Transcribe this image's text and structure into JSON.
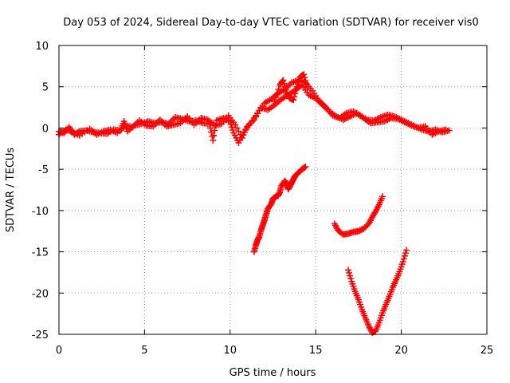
{
  "chart_data": {
    "type": "scatter",
    "title": "Day 053 of 2024, Sidereal Day-to-day VTEC variation (SDTVAR) for receiver vis0",
    "xlabel": "GPS time / hours",
    "ylabel": "SDTVAR / TECUs",
    "xlim": [
      0,
      25
    ],
    "ylim": [
      -25,
      10
    ],
    "xticks": [
      "0",
      "5",
      "10",
      "15",
      "20",
      "25"
    ],
    "yticks": [
      "10",
      "5",
      "0",
      "-5",
      "-10",
      "-15",
      "-20",
      "-25"
    ],
    "grid": true,
    "marker": "+",
    "color": "#ff0000",
    "series": [
      {
        "points": [
          [
            0,
            -0.4
          ],
          [
            0.3,
            -0.6
          ],
          [
            0.6,
            0.1
          ],
          [
            0.9,
            -0.8
          ],
          [
            1.2,
            -0.4
          ],
          [
            1.6,
            -0.3
          ],
          [
            2.0,
            -0.5
          ],
          [
            2.4,
            -0.6
          ],
          [
            2.8,
            -0.7
          ],
          [
            3.2,
            -0.2
          ],
          [
            3.6,
            -0.3
          ],
          [
            3.8,
            0.8
          ],
          [
            4.0,
            -0.4
          ],
          [
            4.4,
            0.3
          ],
          [
            4.8,
            0.5
          ],
          [
            5.2,
            0.8
          ],
          [
            5.6,
            0.6
          ],
          [
            6.0,
            0.7
          ],
          [
            6.4,
            0.5
          ],
          [
            6.8,
            1.3
          ],
          [
            7.2,
            1.1
          ],
          [
            7.6,
            0.8
          ],
          [
            8.0,
            0.9
          ],
          [
            8.4,
            0.6
          ],
          [
            8.8,
            0.5
          ],
          [
            9.0,
            -1.5
          ],
          [
            9.2,
            0.9
          ],
          [
            9.6,
            1.2
          ],
          [
            10.0,
            0.8
          ],
          [
            10.2,
            -0.6
          ],
          [
            10.5,
            -1.8
          ],
          [
            10.8,
            -0.5
          ],
          [
            11.2,
            0.6
          ],
          [
            11.6,
            1.8
          ],
          [
            12.0,
            3.0
          ],
          [
            12.4,
            3.5
          ],
          [
            12.8,
            4.2
          ],
          [
            13.2,
            4.7
          ],
          [
            13.6,
            5.5
          ],
          [
            14.0,
            5.8
          ],
          [
            14.4,
            5.5
          ],
          [
            14.8,
            4.5
          ],
          [
            15.2,
            3.3
          ],
          [
            15.6,
            2.5
          ],
          [
            16.0,
            1.5
          ],
          [
            16.4,
            1.2
          ],
          [
            16.8,
            1.8
          ],
          [
            17.2,
            2.0
          ],
          [
            17.6,
            1.5
          ],
          [
            18.0,
            1.0
          ],
          [
            18.4,
            0.9
          ],
          [
            18.8,
            1.3
          ],
          [
            19.2,
            1.6
          ],
          [
            19.6,
            1.4
          ],
          [
            20.0,
            1.0
          ],
          [
            20.4,
            0.6
          ],
          [
            20.8,
            0.2
          ],
          [
            21.2,
            -0.2
          ],
          [
            21.6,
            -0.4
          ],
          [
            22.0,
            -0.2
          ],
          [
            22.4,
            -0.5
          ],
          [
            22.8,
            -0.3
          ]
        ]
      },
      {
        "points": [
          [
            0,
            -0.8
          ],
          [
            0.4,
            -0.2
          ],
          [
            0.8,
            -0.5
          ],
          [
            1.2,
            -0.9
          ],
          [
            1.8,
            -0.1
          ],
          [
            2.2,
            -0.8
          ],
          [
            2.6,
            -0.4
          ],
          [
            3.0,
            -0.2
          ],
          [
            3.4,
            -0.6
          ],
          [
            3.9,
            0.3
          ],
          [
            4.3,
            0.1
          ],
          [
            4.7,
            0.9
          ],
          [
            5.1,
            0.3
          ],
          [
            5.5,
            0.2
          ],
          [
            5.9,
            1.0
          ],
          [
            6.3,
            0.2
          ],
          [
            6.7,
            0.4
          ],
          [
            7.1,
            0.6
          ],
          [
            7.5,
            1.4
          ],
          [
            7.9,
            0.4
          ],
          [
            8.3,
            1.2
          ],
          [
            8.7,
            1.0
          ],
          [
            9.1,
            0.3
          ],
          [
            9.5,
            0.5
          ],
          [
            9.9,
            1.5
          ],
          [
            10.3,
            0.4
          ],
          [
            10.7,
            -1.2
          ],
          [
            11.0,
            0.2
          ],
          [
            11.4,
            1.0
          ],
          [
            11.8,
            2.5
          ],
          [
            12.2,
            2.2
          ],
          [
            12.6,
            2.8
          ],
          [
            13.0,
            3.5
          ],
          [
            13.4,
            4.0
          ],
          [
            13.8,
            4.6
          ],
          [
            14.2,
            5.2
          ],
          [
            14.6,
            4.0
          ],
          [
            15.0,
            3.6
          ],
          [
            15.4,
            2.8
          ],
          [
            15.8,
            2.0
          ],
          [
            16.2,
            1.4
          ],
          [
            16.6,
            1.0
          ],
          [
            17.0,
            1.4
          ],
          [
            17.4,
            1.8
          ],
          [
            17.8,
            1.2
          ],
          [
            18.2,
            0.6
          ],
          [
            18.6,
            0.7
          ],
          [
            19.0,
            0.8
          ],
          [
            19.4,
            1.2
          ],
          [
            19.8,
            1.1
          ],
          [
            20.2,
            0.7
          ],
          [
            20.6,
            0.3
          ],
          [
            21.0,
            0.0
          ],
          [
            21.4,
            0.2
          ],
          [
            21.8,
            -0.8
          ],
          [
            22.2,
            -0.4
          ],
          [
            22.6,
            -0.2
          ]
        ]
      },
      {
        "points": [
          [
            12.6,
            3.2
          ],
          [
            12.9,
            5.2
          ],
          [
            13.1,
            5.8
          ],
          [
            13.3,
            4.2
          ],
          [
            13.5,
            3.6
          ],
          [
            13.7,
            3.4
          ],
          [
            13.9,
            5.0
          ],
          [
            14.1,
            6.2
          ],
          [
            14.3,
            6.5
          ],
          [
            14.5,
            5.0
          ]
        ]
      },
      {
        "points": [
          [
            11.4,
            -15.0
          ],
          [
            11.5,
            -14.2
          ],
          [
            11.6,
            -13.6
          ],
          [
            11.7,
            -13.2
          ],
          [
            11.8,
            -12.4
          ],
          [
            11.9,
            -11.8
          ],
          [
            12.0,
            -11.2
          ],
          [
            12.1,
            -10.5
          ],
          [
            12.2,
            -9.8
          ],
          [
            12.4,
            -9.2
          ],
          [
            12.5,
            -8.6
          ],
          [
            12.6,
            -8.4
          ],
          [
            12.8,
            -8.2
          ],
          [
            12.9,
            -7.8
          ],
          [
            13.0,
            -7.0
          ],
          [
            13.2,
            -6.4
          ],
          [
            13.3,
            -6.8
          ],
          [
            13.4,
            -7.4
          ],
          [
            13.5,
            -7.0
          ],
          [
            13.6,
            -6.6
          ],
          [
            13.7,
            -6.2
          ],
          [
            13.8,
            -5.8
          ],
          [
            14.0,
            -5.4
          ],
          [
            14.2,
            -5.0
          ],
          [
            14.4,
            -4.7
          ]
        ]
      },
      {
        "points": [
          [
            16.1,
            -11.6
          ],
          [
            16.3,
            -12.4
          ],
          [
            16.6,
            -12.9
          ],
          [
            16.9,
            -12.8
          ],
          [
            17.2,
            -12.6
          ],
          [
            17.5,
            -12.5
          ],
          [
            17.8,
            -12.2
          ],
          [
            18.1,
            -11.6
          ],
          [
            18.3,
            -10.8
          ],
          [
            18.5,
            -10.1
          ],
          [
            18.7,
            -9.3
          ],
          [
            18.9,
            -8.3
          ]
        ]
      },
      {
        "points": [
          [
            16.9,
            -17.2
          ],
          [
            17.1,
            -18.6
          ],
          [
            17.3,
            -19.8
          ],
          [
            17.5,
            -20.8
          ],
          [
            17.7,
            -22.0
          ],
          [
            17.9,
            -23.0
          ],
          [
            18.1,
            -24.0
          ],
          [
            18.3,
            -24.8
          ],
          [
            18.5,
            -24.6
          ],
          [
            18.7,
            -23.6
          ],
          [
            18.9,
            -22.4
          ],
          [
            19.1,
            -21.4
          ],
          [
            19.3,
            -20.4
          ],
          [
            19.5,
            -19.3
          ],
          [
            19.7,
            -18.4
          ],
          [
            19.9,
            -17.4
          ],
          [
            20.1,
            -16.2
          ],
          [
            20.3,
            -14.8
          ]
        ]
      }
    ]
  }
}
